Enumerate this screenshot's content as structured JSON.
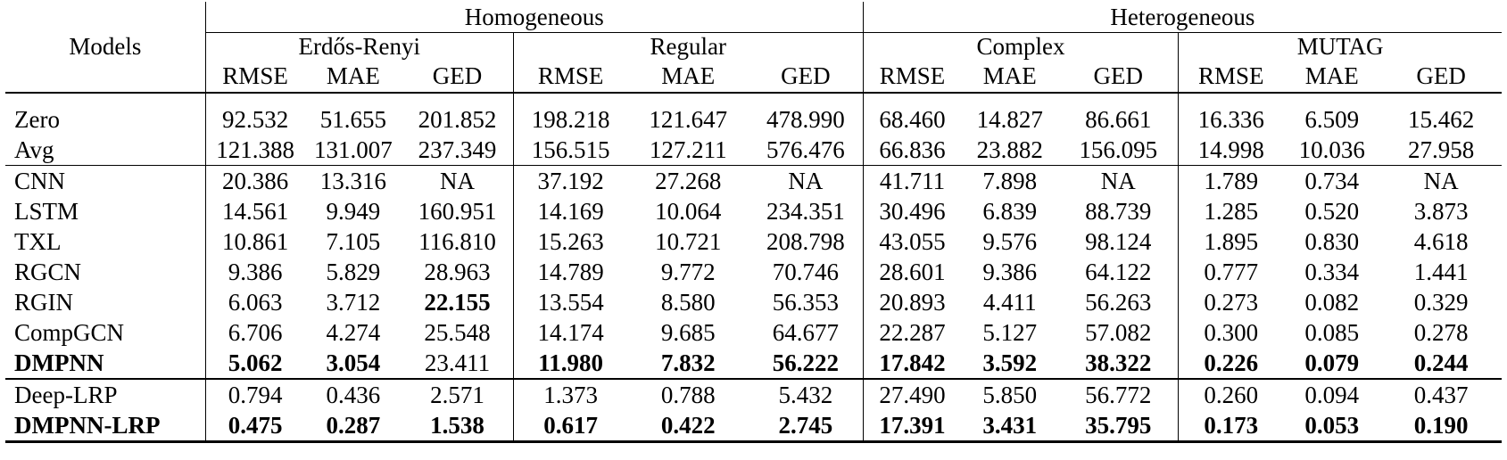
{
  "table": {
    "model_header": "Models",
    "groups": [
      "Homogeneous",
      "Heterogeneous"
    ],
    "datasets": [
      "Erdős-Renyi",
      "Regular",
      "Complex",
      "MUTAG"
    ],
    "metrics": [
      "RMSE",
      "MAE",
      "GED"
    ],
    "rows": [
      {
        "model": "Zero",
        "model_bold": false,
        "values": [
          "92.532",
          "51.655",
          "201.852",
          "198.218",
          "121.647",
          "478.990",
          "68.460",
          "14.827",
          "86.661",
          "16.336",
          "6.509",
          "15.462"
        ],
        "bold": []
      },
      {
        "model": "Avg",
        "model_bold": false,
        "values": [
          "121.388",
          "131.007",
          "237.349",
          "156.515",
          "127.211",
          "576.476",
          "66.836",
          "23.882",
          "156.095",
          "14.998",
          "10.036",
          "27.958"
        ],
        "bold": []
      },
      {
        "model": "CNN",
        "model_bold": false,
        "values": [
          "20.386",
          "13.316",
          "NA",
          "37.192",
          "27.268",
          "NA",
          "41.711",
          "7.898",
          "NA",
          "1.789",
          "0.734",
          "NA"
        ],
        "bold": []
      },
      {
        "model": "LSTM",
        "model_bold": false,
        "values": [
          "14.561",
          "9.949",
          "160.951",
          "14.169",
          "10.064",
          "234.351",
          "30.496",
          "6.839",
          "88.739",
          "1.285",
          "0.520",
          "3.873"
        ],
        "bold": []
      },
      {
        "model": "TXL",
        "model_bold": false,
        "values": [
          "10.861",
          "7.105",
          "116.810",
          "15.263",
          "10.721",
          "208.798",
          "43.055",
          "9.576",
          "98.124",
          "1.895",
          "0.830",
          "4.618"
        ],
        "bold": []
      },
      {
        "model": "RGCN",
        "model_bold": false,
        "values": [
          "9.386",
          "5.829",
          "28.963",
          "14.789",
          "9.772",
          "70.746",
          "28.601",
          "9.386",
          "64.122",
          "0.777",
          "0.334",
          "1.441"
        ],
        "bold": []
      },
      {
        "model": "RGIN",
        "model_bold": false,
        "values": [
          "6.063",
          "3.712",
          "22.155",
          "13.554",
          "8.580",
          "56.353",
          "20.893",
          "4.411",
          "56.263",
          "0.273",
          "0.082",
          "0.329"
        ],
        "bold": [
          2
        ]
      },
      {
        "model": "CompGCN",
        "model_bold": false,
        "values": [
          "6.706",
          "4.274",
          "25.548",
          "14.174",
          "9.685",
          "64.677",
          "22.287",
          "5.127",
          "57.082",
          "0.300",
          "0.085",
          "0.278"
        ],
        "bold": []
      },
      {
        "model": "DMPNN",
        "model_bold": true,
        "values": [
          "5.062",
          "3.054",
          "23.411",
          "11.980",
          "7.832",
          "56.222",
          "17.842",
          "3.592",
          "38.322",
          "0.226",
          "0.079",
          "0.244"
        ],
        "bold": [
          0,
          1,
          3,
          4,
          5,
          6,
          7,
          8,
          9,
          10,
          11
        ]
      },
      {
        "model": "Deep-LRP",
        "model_bold": false,
        "values": [
          "0.794",
          "0.436",
          "2.571",
          "1.373",
          "0.788",
          "5.432",
          "27.490",
          "5.850",
          "56.772",
          "0.260",
          "0.094",
          "0.437"
        ],
        "bold": []
      },
      {
        "model": "DMPNN-LRP",
        "model_bold": true,
        "values": [
          "0.475",
          "0.287",
          "1.538",
          "0.617",
          "0.422",
          "2.745",
          "17.391",
          "3.431",
          "35.795",
          "0.173",
          "0.053",
          "0.190"
        ],
        "bold": [
          0,
          1,
          2,
          3,
          4,
          5,
          6,
          7,
          8,
          9,
          10,
          11
        ]
      }
    ]
  }
}
